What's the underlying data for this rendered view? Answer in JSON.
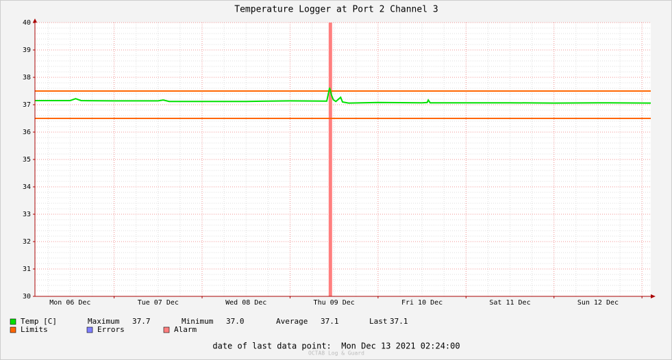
{
  "chart_data": {
    "type": "line",
    "title": "Temperature Logger at Port 2 Channel 3",
    "xlim": [
      2.4,
      170.4
    ],
    "xticks": [
      {
        "value": 12,
        "label": "Mon 06 Dec"
      },
      {
        "value": 36,
        "label": "Tue 07 Dec"
      },
      {
        "value": 60,
        "label": "Wed 08 Dec"
      },
      {
        "value": 84,
        "label": "Thu 09 Dec"
      },
      {
        "value": 108,
        "label": "Fri 10 Dec"
      },
      {
        "value": 132,
        "label": "Sat 11 Dec"
      },
      {
        "value": 156,
        "label": "Sun 12 Dec"
      }
    ],
    "xgrid": [
      24,
      48,
      72,
      96,
      120,
      144,
      168
    ],
    "ylim": [
      30,
      40
    ],
    "yticks": [
      30,
      31,
      32,
      33,
      34,
      35,
      36,
      37,
      38,
      39,
      40
    ],
    "grid": true,
    "series": [
      {
        "name": "Temp [C]",
        "color": "#00e000",
        "x": [
          2.4,
          12,
          13.5,
          15,
          24,
          36,
          37.4,
          39,
          48,
          60,
          72,
          82,
          82.8,
          83.3,
          83.8,
          84.5,
          85.8,
          86.3,
          88,
          96,
          108,
          109.4,
          109.7,
          110.2,
          120,
          132,
          144,
          156,
          170.4
        ],
        "values": [
          37.15,
          37.15,
          37.22,
          37.15,
          37.14,
          37.14,
          37.17,
          37.12,
          37.12,
          37.12,
          37.14,
          37.13,
          37.62,
          37.35,
          37.18,
          37.12,
          37.27,
          37.1,
          37.06,
          37.08,
          37.07,
          37.08,
          37.17,
          37.07,
          37.07,
          37.07,
          37.06,
          37.07,
          37.06
        ]
      }
    ],
    "stats": [
      {
        "label": "Maximum",
        "value": "37.7"
      },
      {
        "label": "Minimum",
        "value": "37.0"
      },
      {
        "label": "Average",
        "value": "37.1"
      },
      {
        "label": "Last",
        "value": "37.1"
      }
    ],
    "limits": {
      "name": "Limits",
      "color": "#ff6600",
      "values": [
        37.5,
        36.5
      ]
    },
    "errors": {
      "name": "Errors",
      "color": "#7f7fff"
    },
    "alarm": {
      "name": "Alarm",
      "color": "#ff7f7f",
      "x": [
        83
      ]
    },
    "footer": "date of last data point:  Mon Dec 13 2021 02:24:00",
    "watermark": "OCTA8 Log & Guard"
  }
}
